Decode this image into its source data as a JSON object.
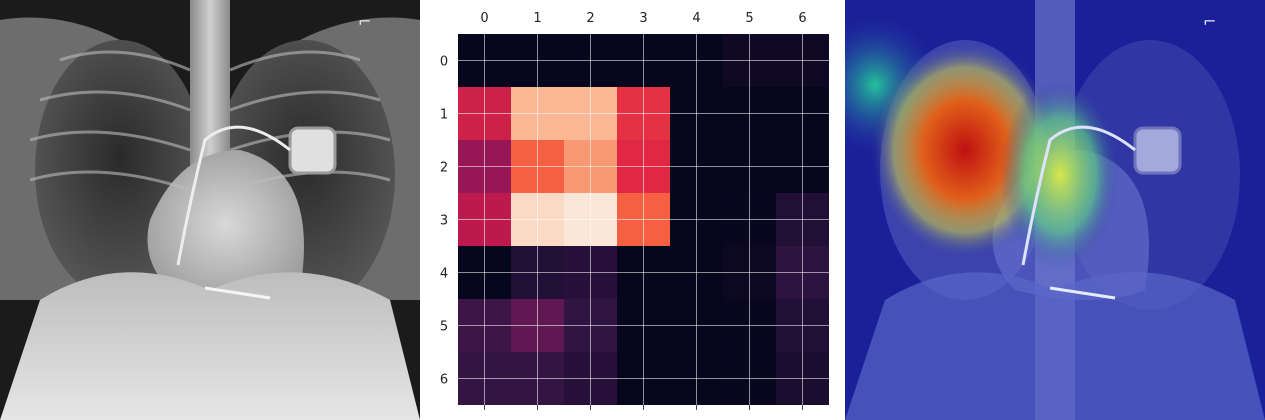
{
  "panels": {
    "left": {
      "kind": "chest-xray",
      "marker_glyph": "⌐"
    },
    "right": {
      "kind": "chest-xray-with-heatmap-overlay",
      "marker_glyph": "⌐"
    }
  },
  "chart_data": {
    "type": "heatmap",
    "x_ticks": [
      "0",
      "1",
      "2",
      "3",
      "4",
      "5",
      "6"
    ],
    "y_ticks": [
      "0",
      "1",
      "2",
      "3",
      "4",
      "5",
      "6"
    ],
    "grid": true,
    "grid_size": 7,
    "colormap": "rocket",
    "values": [
      [
        0.01,
        0.01,
        0.01,
        0.01,
        0.01,
        0.04,
        0.04
      ],
      [
        0.55,
        0.88,
        0.88,
        0.62,
        0.01,
        0.01,
        0.01
      ],
      [
        0.4,
        0.72,
        0.82,
        0.6,
        0.01,
        0.01,
        0.01
      ],
      [
        0.5,
        0.96,
        0.99,
        0.72,
        0.01,
        0.02,
        0.1
      ],
      [
        0.01,
        0.1,
        0.12,
        0.01,
        0.01,
        0.03,
        0.14
      ],
      [
        0.18,
        0.26,
        0.15,
        0.01,
        0.01,
        0.02,
        0.1
      ],
      [
        0.16,
        0.16,
        0.12,
        0.01,
        0.01,
        0.02,
        0.08
      ]
    ]
  },
  "colors": {
    "overlay_base": "#1a1f9a",
    "background": "#ffffff"
  }
}
